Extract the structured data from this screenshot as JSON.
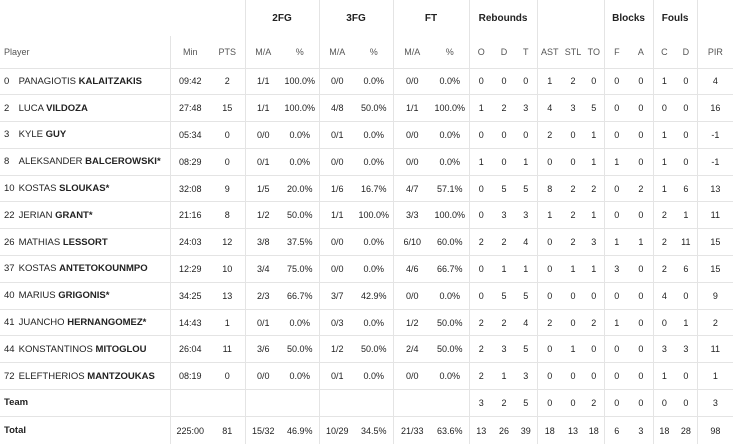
{
  "group_headers": {
    "fg2": "2FG",
    "fg3": "3FG",
    "ft": "FT",
    "rebounds": "Rebounds",
    "blocks": "Blocks",
    "fouls": "Fouls"
  },
  "columns": {
    "player": "Player",
    "min": "Min",
    "pts": "PTS",
    "fg2_ma": "M/A",
    "fg2_pct": "%",
    "fg3_ma": "M/A",
    "fg3_pct": "%",
    "ft_ma": "M/A",
    "ft_pct": "%",
    "reb_o": "O",
    "reb_d": "D",
    "reb_t": "T",
    "ast": "AST",
    "stl": "STL",
    "to": "TO",
    "blk_f": "F",
    "blk_a": "A",
    "foul_c": "C",
    "foul_d": "D",
    "pir": "PIR"
  },
  "players": [
    {
      "num": "0",
      "first": "PANAGIOTIS",
      "last": "KALAITZAKIS",
      "min": "09:42",
      "pts": "2",
      "fg2": "1/1",
      "fg2p": "100.0%",
      "fg3": "0/0",
      "fg3p": "0.0%",
      "ft": "0/0",
      "ftp": "0.0%",
      "o": "0",
      "d": "0",
      "t": "0",
      "ast": "1",
      "stl": "2",
      "to": "0",
      "bf": "0",
      "ba": "0",
      "fc": "1",
      "fd": "0",
      "pir": "4"
    },
    {
      "num": "2",
      "first": "LUCA",
      "last": "VILDOZA",
      "min": "27:48",
      "pts": "15",
      "fg2": "1/1",
      "fg2p": "100.0%",
      "fg3": "4/8",
      "fg3p": "50.0%",
      "ft": "1/1",
      "ftp": "100.0%",
      "o": "1",
      "d": "2",
      "t": "3",
      "ast": "4",
      "stl": "3",
      "to": "5",
      "bf": "0",
      "ba": "0",
      "fc": "0",
      "fd": "0",
      "pir": "16"
    },
    {
      "num": "3",
      "first": "KYLE",
      "last": "GUY",
      "min": "05:34",
      "pts": "0",
      "fg2": "0/0",
      "fg2p": "0.0%",
      "fg3": "0/1",
      "fg3p": "0.0%",
      "ft": "0/0",
      "ftp": "0.0%",
      "o": "0",
      "d": "0",
      "t": "0",
      "ast": "2",
      "stl": "0",
      "to": "1",
      "bf": "0",
      "ba": "0",
      "fc": "1",
      "fd": "0",
      "pir": "-1"
    },
    {
      "num": "8",
      "first": "ALEKSANDER",
      "last": "BALCEROWSKI*",
      "min": "08:29",
      "pts": "0",
      "fg2": "0/1",
      "fg2p": "0.0%",
      "fg3": "0/0",
      "fg3p": "0.0%",
      "ft": "0/0",
      "ftp": "0.0%",
      "o": "1",
      "d": "0",
      "t": "1",
      "ast": "0",
      "stl": "0",
      "to": "1",
      "bf": "1",
      "ba": "0",
      "fc": "1",
      "fd": "0",
      "pir": "-1"
    },
    {
      "num": "10",
      "first": "KOSTAS",
      "last": "SLOUKAS*",
      "min": "32:08",
      "pts": "9",
      "fg2": "1/5",
      "fg2p": "20.0%",
      "fg3": "1/6",
      "fg3p": "16.7%",
      "ft": "4/7",
      "ftp": "57.1%",
      "o": "0",
      "d": "5",
      "t": "5",
      "ast": "8",
      "stl": "2",
      "to": "2",
      "bf": "0",
      "ba": "2",
      "fc": "1",
      "fd": "6",
      "pir": "13"
    },
    {
      "num": "22",
      "first": "JERIAN",
      "last": "GRANT*",
      "min": "21:16",
      "pts": "8",
      "fg2": "1/2",
      "fg2p": "50.0%",
      "fg3": "1/1",
      "fg3p": "100.0%",
      "ft": "3/3",
      "ftp": "100.0%",
      "o": "0",
      "d": "3",
      "t": "3",
      "ast": "1",
      "stl": "2",
      "to": "1",
      "bf": "0",
      "ba": "0",
      "fc": "2",
      "fd": "1",
      "pir": "11"
    },
    {
      "num": "26",
      "first": "MATHIAS",
      "last": "LESSORT",
      "min": "24:03",
      "pts": "12",
      "fg2": "3/8",
      "fg2p": "37.5%",
      "fg3": "0/0",
      "fg3p": "0.0%",
      "ft": "6/10",
      "ftp": "60.0%",
      "o": "2",
      "d": "2",
      "t": "4",
      "ast": "0",
      "stl": "2",
      "to": "3",
      "bf": "1",
      "ba": "1",
      "fc": "2",
      "fd": "11",
      "pir": "15"
    },
    {
      "num": "37",
      "first": "KOSTAS",
      "last": "ANTETOKOUNMPO",
      "min": "12:29",
      "pts": "10",
      "fg2": "3/4",
      "fg2p": "75.0%",
      "fg3": "0/0",
      "fg3p": "0.0%",
      "ft": "4/6",
      "ftp": "66.7%",
      "o": "0",
      "d": "1",
      "t": "1",
      "ast": "0",
      "stl": "1",
      "to": "1",
      "bf": "3",
      "ba": "0",
      "fc": "2",
      "fd": "6",
      "pir": "15"
    },
    {
      "num": "40",
      "first": "MARIUS",
      "last": "GRIGONIS*",
      "min": "34:25",
      "pts": "13",
      "fg2": "2/3",
      "fg2p": "66.7%",
      "fg3": "3/7",
      "fg3p": "42.9%",
      "ft": "0/0",
      "ftp": "0.0%",
      "o": "0",
      "d": "5",
      "t": "5",
      "ast": "0",
      "stl": "0",
      "to": "0",
      "bf": "0",
      "ba": "0",
      "fc": "4",
      "fd": "0",
      "pir": "9"
    },
    {
      "num": "41",
      "first": "JUANCHO",
      "last": "HERNANGOMEZ*",
      "min": "14:43",
      "pts": "1",
      "fg2": "0/1",
      "fg2p": "0.0%",
      "fg3": "0/3",
      "fg3p": "0.0%",
      "ft": "1/2",
      "ftp": "50.0%",
      "o": "2",
      "d": "2",
      "t": "4",
      "ast": "2",
      "stl": "0",
      "to": "2",
      "bf": "1",
      "ba": "0",
      "fc": "0",
      "fd": "1",
      "pir": "2"
    },
    {
      "num": "44",
      "first": "KONSTANTINOS",
      "last": "MITOGLOU",
      "min": "26:04",
      "pts": "11",
      "fg2": "3/6",
      "fg2p": "50.0%",
      "fg3": "1/2",
      "fg3p": "50.0%",
      "ft": "2/4",
      "ftp": "50.0%",
      "o": "2",
      "d": "3",
      "t": "5",
      "ast": "0",
      "stl": "1",
      "to": "0",
      "bf": "0",
      "ba": "0",
      "fc": "3",
      "fd": "3",
      "pir": "11"
    },
    {
      "num": "72",
      "first": "ELEFTHERIOS",
      "last": "MANTZOUKAS",
      "min": "08:19",
      "pts": "0",
      "fg2": "0/0",
      "fg2p": "0.0%",
      "fg3": "0/1",
      "fg3p": "0.0%",
      "ft": "0/0",
      "ftp": "0.0%",
      "o": "2",
      "d": "1",
      "t": "3",
      "ast": "0",
      "stl": "0",
      "to": "0",
      "bf": "0",
      "ba": "0",
      "fc": "1",
      "fd": "0",
      "pir": "1"
    }
  ],
  "team": {
    "label": "Team",
    "o": "3",
    "d": "2",
    "t": "5",
    "ast": "0",
    "stl": "0",
    "to": "2",
    "bf": "0",
    "ba": "0",
    "fc": "0",
    "fd": "0",
    "pir": "3"
  },
  "total": {
    "label": "Total",
    "min": "225:00",
    "pts": "81",
    "fg2": "15/32",
    "fg2p": "46.9%",
    "fg3": "10/29",
    "fg3p": "34.5%",
    "ft": "21/33",
    "ftp": "63.6%",
    "o": "13",
    "d": "26",
    "t": "39",
    "ast": "18",
    "stl": "13",
    "to": "18",
    "bf": "6",
    "ba": "3",
    "fc": "18",
    "fd": "28",
    "pir": "98"
  }
}
